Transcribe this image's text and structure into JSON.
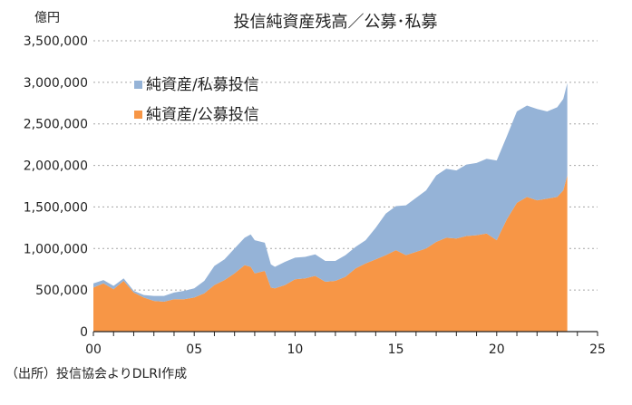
{
  "chart_data": {
    "type": "area",
    "title": "投信純資産残高／公募･私募",
    "ylabel": "億円",
    "xlabel": "",
    "ylim": [
      0,
      3500000
    ],
    "xlim": [
      0,
      25
    ],
    "y_ticks": [
      0,
      500000,
      1000000,
      1500000,
      2000000,
      2500000,
      3000000,
      3500000
    ],
    "y_tick_labels": [
      "0",
      "500,000",
      "1,000,000",
      "1,500,000",
      "2,000,000",
      "2,500,000",
      "3,000,000",
      "3,500,000"
    ],
    "x_ticks": [
      0,
      5,
      10,
      15,
      20,
      25
    ],
    "x_tick_labels": [
      "00",
      "05",
      "10",
      "15",
      "20",
      "25"
    ],
    "grid": true,
    "legend_position": "top-left",
    "stacked": true,
    "x": [
      0.0,
      0.5,
      1.0,
      1.5,
      2.0,
      2.5,
      3.0,
      3.5,
      4.0,
      4.5,
      5.0,
      5.5,
      6.0,
      6.5,
      7.0,
      7.5,
      7.8,
      8.0,
      8.5,
      8.8,
      9.0,
      9.5,
      10.0,
      10.5,
      11.0,
      11.5,
      12.0,
      12.5,
      13.0,
      13.5,
      14.0,
      14.5,
      15.0,
      15.5,
      16.0,
      16.5,
      17.0,
      17.5,
      18.0,
      18.5,
      19.0,
      19.5,
      20.0,
      20.5,
      21.0,
      21.5,
      22.0,
      22.5,
      23.0,
      23.3,
      23.5
    ],
    "series": [
      {
        "name": "純資産/公募投信",
        "color": "#f79646",
        "values": [
          530000,
          580000,
          510000,
          610000,
          470000,
          410000,
          370000,
          360000,
          390000,
          390000,
          410000,
          460000,
          560000,
          620000,
          700000,
          800000,
          780000,
          700000,
          730000,
          530000,
          520000,
          560000,
          630000,
          640000,
          670000,
          600000,
          610000,
          660000,
          760000,
          820000,
          870000,
          920000,
          980000,
          920000,
          960000,
          1000000,
          1080000,
          1130000,
          1120000,
          1150000,
          1160000,
          1180000,
          1100000,
          1350000,
          1550000,
          1620000,
          1580000,
          1600000,
          1620000,
          1700000,
          1880000
        ]
      },
      {
        "name": "純資産/私募投信",
        "color": "#95b3d7",
        "values": [
          50000,
          40000,
          40000,
          30000,
          20000,
          30000,
          60000,
          70000,
          80000,
          100000,
          110000,
          150000,
          230000,
          250000,
          300000,
          330000,
          390000,
          400000,
          340000,
          280000,
          260000,
          280000,
          260000,
          260000,
          260000,
          250000,
          240000,
          260000,
          260000,
          280000,
          380000,
          500000,
          530000,
          600000,
          650000,
          700000,
          800000,
          830000,
          820000,
          860000,
          870000,
          900000,
          960000,
          1000000,
          1100000,
          1100000,
          1100000,
          1050000,
          1080000,
          1100000,
          1110000
        ]
      }
    ],
    "legend": [
      "純資産/私募投信",
      "純資産/公募投信"
    ],
    "annotations": []
  },
  "source_note": "（出所）投信協会よりDLRI作成"
}
